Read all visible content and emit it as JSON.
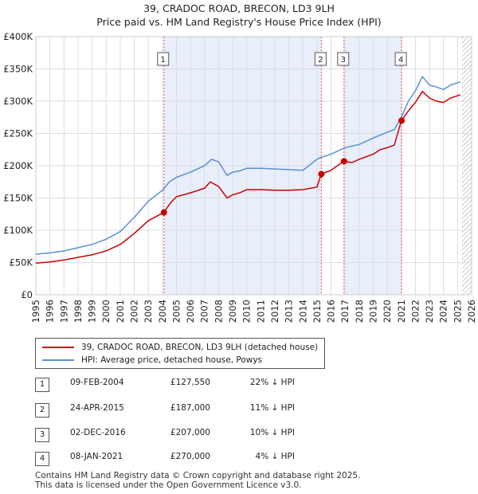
{
  "chart_data": {
    "type": "line",
    "title": "39, CRADOC ROAD, BRECON, LD3 9LH",
    "subtitle": "Price paid vs. HM Land Registry's House Price Index (HPI)",
    "xlim": [
      1995,
      2026
    ],
    "ylim": [
      0,
      400000
    ],
    "x_ticks": [
      1995,
      1996,
      1997,
      1998,
      1999,
      2000,
      2001,
      2002,
      2003,
      2004,
      2005,
      2006,
      2007,
      2008,
      2009,
      2010,
      2011,
      2012,
      2013,
      2014,
      2015,
      2016,
      2017,
      2018,
      2019,
      2020,
      2021,
      2022,
      2023,
      2024,
      2025,
      2026
    ],
    "y_ticks": [
      {
        "value": 0,
        "label": "£0"
      },
      {
        "value": 50000,
        "label": "£50K"
      },
      {
        "value": 100000,
        "label": "£100K"
      },
      {
        "value": 150000,
        "label": "£150K"
      },
      {
        "value": 200000,
        "label": "£200K"
      },
      {
        "value": 250000,
        "label": "£250K"
      },
      {
        "value": 300000,
        "label": "£300K"
      },
      {
        "value": 350000,
        "label": "£350K"
      },
      {
        "value": 400000,
        "label": "£400K"
      }
    ],
    "grid": true,
    "forecast_hatch_start": 2025.3,
    "series": [
      {
        "name": "39, CRADOC ROAD, BRECON, LD3 9LH (detached house)",
        "color": "#cc0000",
        "x": [
          1995.0,
          1996.0,
          1997.0,
          1998.0,
          1999.0,
          2000.0,
          2001.0,
          2002.0,
          2003.0,
          2004.1,
          2004.6,
          2005.0,
          2006.0,
          2007.0,
          2007.4,
          2008.0,
          2008.6,
          2009.0,
          2009.5,
          2010.0,
          2011.0,
          2012.0,
          2013.0,
          2014.0,
          2015.0,
          2015.3,
          2016.0,
          2016.9,
          2017.5,
          2018.0,
          2019.0,
          2019.5,
          2020.0,
          2020.5,
          2021.0,
          2021.5,
          2022.0,
          2022.5,
          2023.0,
          2023.5,
          2024.0,
          2024.5,
          2025.2
        ],
        "y": [
          49000,
          51000,
          54000,
          58000,
          62000,
          68000,
          78000,
          95000,
          115000,
          127550,
          143000,
          152000,
          158000,
          165000,
          175000,
          168000,
          150000,
          155000,
          158000,
          163000,
          163000,
          162000,
          162000,
          163000,
          167000,
          187000,
          193000,
          207000,
          205000,
          210000,
          218000,
          225000,
          228000,
          232000,
          270000,
          285000,
          298000,
          315000,
          305000,
          300000,
          298000,
          305000,
          310000
        ]
      },
      {
        "name": "HPI: Average price, detached house, Powys",
        "color": "#5b8fd4",
        "x": [
          1995.0,
          1996.0,
          1997.0,
          1998.0,
          1999.0,
          2000.0,
          2001.0,
          2002.0,
          2003.0,
          2004.0,
          2004.5,
          2005.0,
          2006.0,
          2007.0,
          2007.5,
          2008.0,
          2008.6,
          2009.0,
          2009.5,
          2010.0,
          2011.0,
          2012.0,
          2013.0,
          2014.0,
          2015.0,
          2015.3,
          2016.0,
          2017.0,
          2018.0,
          2019.0,
          2020.0,
          2020.5,
          2021.0,
          2021.5,
          2022.0,
          2022.5,
          2023.0,
          2023.5,
          2024.0,
          2024.5,
          2025.2
        ],
        "y": [
          63000,
          65000,
          68000,
          73000,
          78000,
          86000,
          98000,
          120000,
          145000,
          162000,
          175000,
          182000,
          190000,
          200000,
          210000,
          206000,
          185000,
          190000,
          192000,
          196000,
          196000,
          195000,
          194000,
          193000,
          210000,
          213000,
          218000,
          228000,
          233000,
          243000,
          252000,
          256000,
          275000,
          300000,
          316000,
          338000,
          325000,
          322000,
          318000,
          325000,
          330000
        ]
      }
    ],
    "markers": [
      {
        "id": "1",
        "x": 2004.11,
        "y": 127550
      },
      {
        "id": "2",
        "x": 2015.31,
        "y": 187000
      },
      {
        "id": "3",
        "x": 2016.92,
        "y": 207000
      },
      {
        "id": "4",
        "x": 2021.02,
        "y": 270000
      }
    ]
  },
  "legend": {
    "property": "39, CRADOC ROAD, BRECON, LD3 9LH (detached house)",
    "hpi": "HPI: Average price, detached house, Powys",
    "property_color": "#cc0000",
    "hpi_color": "#5b8fd4"
  },
  "transactions": [
    {
      "num": "1",
      "date": "09-FEB-2004",
      "price": "£127,550",
      "hpi": "22% ↓ HPI"
    },
    {
      "num": "2",
      "date": "24-APR-2015",
      "price": "£187,000",
      "hpi": "11% ↓ HPI"
    },
    {
      "num": "3",
      "date": "02-DEC-2016",
      "price": "£207,000",
      "hpi": "10% ↓ HPI"
    },
    {
      "num": "4",
      "date": "08-JAN-2021",
      "price": "£270,000",
      "hpi": "4% ↓ HPI"
    }
  ],
  "footer": {
    "line1": "Contains HM Land Registry data © Crown copyright and database right 2025.",
    "line2": "This data is licensed under the Open Government Licence v3.0."
  }
}
